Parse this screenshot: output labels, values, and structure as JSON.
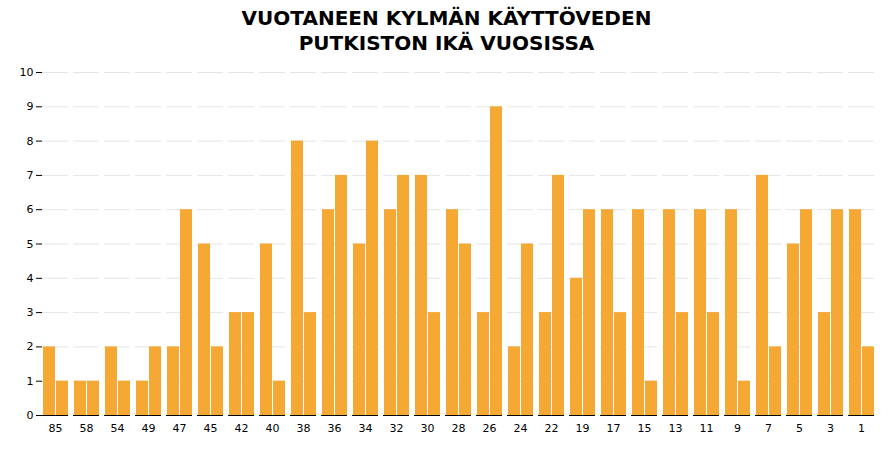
{
  "chart_data": {
    "type": "bar",
    "title": "VUOTANEEN KYLMÄN KÄYTTÖVEDEN\nPUTKISTON IKÄ VUOSISSA",
    "categories": [
      "85",
      "58",
      "54",
      "49",
      "47",
      "45",
      "42",
      "40",
      "38",
      "36",
      "34",
      "32",
      "30",
      "28",
      "26",
      "24",
      "22",
      "19",
      "17",
      "15",
      "13",
      "11",
      "9",
      "7",
      "5",
      "3",
      "1"
    ],
    "series": [
      {
        "color": "#F5A833",
        "values": [
          2,
          1,
          2,
          1,
          2,
          5,
          3,
          5,
          8,
          6,
          5,
          6,
          7,
          6,
          3,
          2,
          3,
          4,
          6,
          6,
          6,
          6,
          6,
          7,
          5,
          3,
          6
        ]
      },
      {
        "color": "#F5A833",
        "values": [
          1,
          1,
          1,
          2,
          6,
          2,
          3,
          1,
          3,
          7,
          8,
          7,
          3,
          5,
          9,
          5,
          7,
          6,
          3,
          1,
          3,
          3,
          1,
          2,
          6,
          6,
          2
        ]
      }
    ],
    "ylim": [
      0,
      10
    ],
    "yticks": [
      0,
      1,
      2,
      3,
      4,
      5,
      6,
      7,
      8,
      9,
      10
    ],
    "grid": true
  }
}
